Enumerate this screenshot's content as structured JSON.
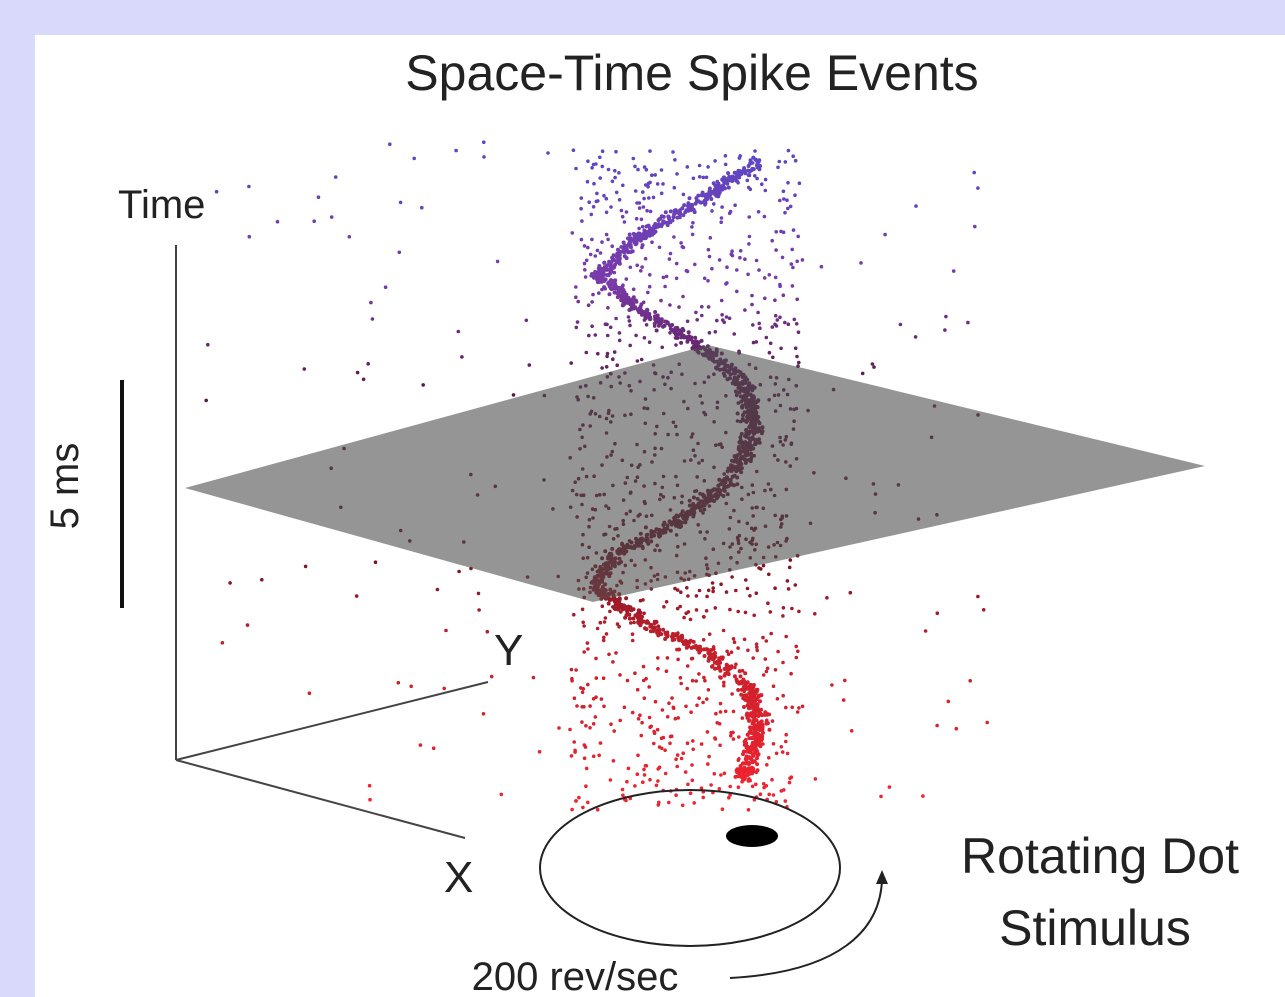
{
  "figure": {
    "title": "Space-Time Spike Events",
    "axes": {
      "time": "Time",
      "y": "Y",
      "x": "X"
    },
    "scale_bar": {
      "label": "5 ms"
    },
    "stimulus": {
      "label_line1": "Rotating Dot",
      "label_line2": "Stimulus",
      "speed": "200 rev/sec"
    }
  },
  "colors": {
    "background": "#d9d9fb",
    "panel": "#ffffff",
    "spike_top": "#5a3fc0",
    "spike_mid": "#6a1030",
    "spike_bottom": "#e8202c",
    "plane": "#555555"
  }
}
